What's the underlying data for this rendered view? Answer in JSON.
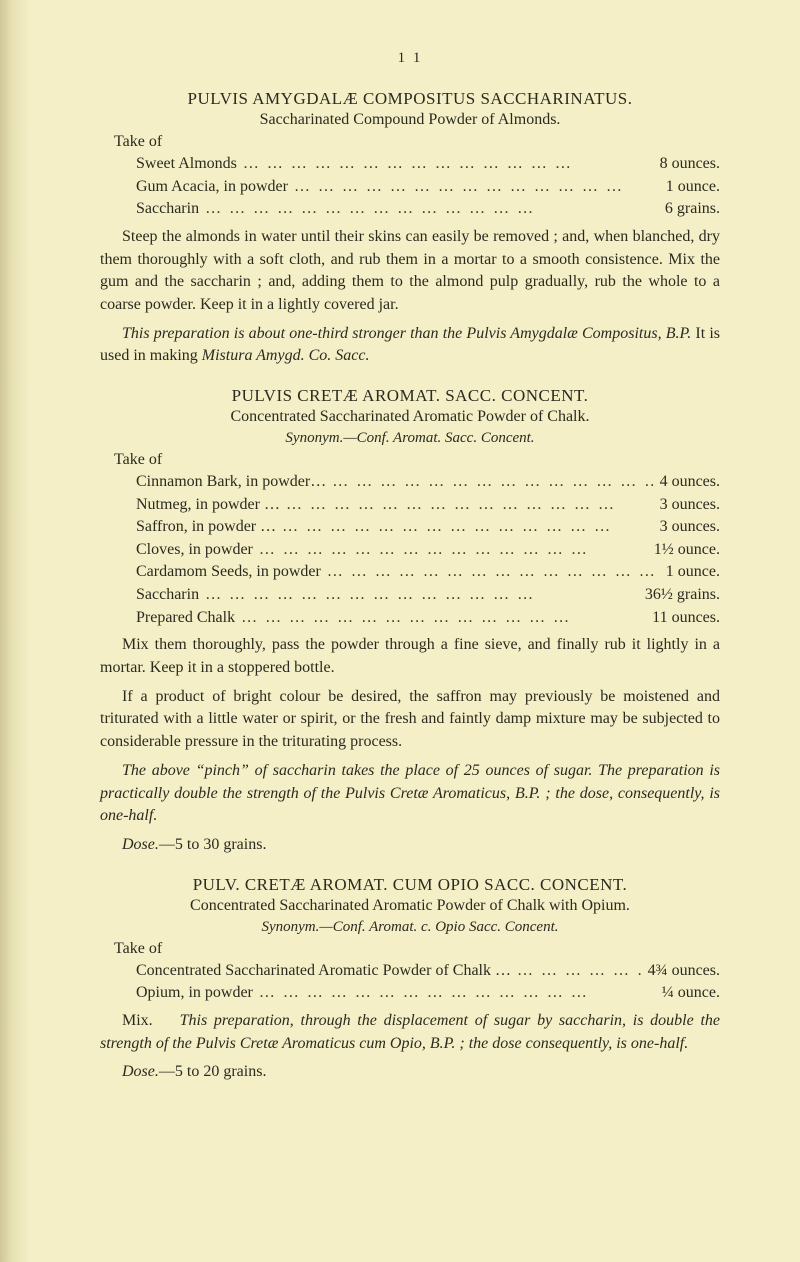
{
  "page": {
    "number": "1 1",
    "background_color": "#f4efc7",
    "text_color": "#2b2a1f",
    "font_family": "Times New Roman",
    "body_fontsize": 16,
    "title_fontsize": 17
  },
  "dots": "…   …   …   …   …   …   …   …   …   …   …   …   …   …",
  "sec1": {
    "title": "PULVIS AMYGDALÆ COMPOSITUS SACCHARINATUS.",
    "subtitle": "Saccharinated Compound Powder of Almonds.",
    "take_of": "Take of",
    "ingredients": [
      {
        "label": "Sweet Almonds",
        "amount": "8 ounces."
      },
      {
        "label": "Gum Acacia, in powder",
        "amount": "1 ounce."
      },
      {
        "label": "Saccharin",
        "amount": "6 grains."
      }
    ],
    "para1": "Steep the almonds in water until their skins can easily be removed ; and, when blanched, dry them thoroughly with a soft cloth, and rub them in a mortar to a smooth consistence. Mix the gum and the saccharin ; and, adding them to the almond pulp gradually, rub the whole to a coarse powder. Keep it in a lightly covered jar.",
    "para2_italic": "This preparation is about one-third stronger than the Pulvis Amygdalæ Compositus, B.P. ",
    "para2_tail": "It is used in making ",
    "para2_tail_italic": "Mistura Amygd. Co. Sacc."
  },
  "sec2": {
    "title": "PULVIS CRETÆ AROMAT. SACC. CONCENT.",
    "subtitle": "Concentrated Saccharinated Aromatic Powder of Chalk.",
    "synonym": "Synonym.—Conf. Aromat. Sacc. Concent.",
    "take_of": "Take of",
    "ingredients": [
      {
        "label": "Cinnamon Bark, in powder…",
        "amount": "4 ounces."
      },
      {
        "label": "Nutmeg, in powder …",
        "amount": "3 ounces."
      },
      {
        "label": "Saffron, in powder …",
        "amount": "3 ounces."
      },
      {
        "label": "Cloves, in powder",
        "amount": "1½ ounce."
      },
      {
        "label": "Cardamom Seeds, in powder",
        "amount": "1 ounce."
      },
      {
        "label": "Saccharin",
        "amount": "36½ grains."
      },
      {
        "label": "Prepared Chalk",
        "amount": "11 ounces."
      }
    ],
    "para1": "Mix them thoroughly, pass the powder through a fine sieve, and finally rub it lightly in a mortar. Keep it in a stoppered bottle.",
    "para2": "If a product of bright colour be desired, the saffron may previously be moistened and triturated with a little water or spirit, or the fresh and faintly damp mixture may be subjected to considerable pressure in the triturating process.",
    "para3_italic": "The above “pinch” of saccharin takes the place of 25 ounces of sugar. The preparation is practically double the strength of the Pulvis Cretæ Aromaticus, B.P. ; the dose, consequently, is one-half.",
    "dose_label": "Dose.",
    "dose_text": "—5 to 30 grains."
  },
  "sec3": {
    "title": "PULV. CRETÆ AROMAT. CUM OPIO SACC. CONCENT.",
    "subtitle": "Concentrated Saccharinated Aromatic Powder of Chalk with Opium.",
    "synonym": "Synonym.—Conf. Aromat. c. Opio Sacc. Concent.",
    "take_of": "Take of",
    "ingredients": [
      {
        "label": "Concentrated Saccharinated Aromatic Powder of Chalk …",
        "amount": "4¾ ounces."
      },
      {
        "label": "Opium, in powder",
        "amount": "¼ ounce."
      }
    ],
    "mix_label": "Mix.",
    "mix_italic": "This preparation, through the displacement of sugar by saccharin, is double the strength of the Pulvis Cretæ Aromaticus cum Opio, B.P. ; the dose consequently, is one-half.",
    "dose_label": "Dose.",
    "dose_text": "—5 to 20 grains."
  }
}
